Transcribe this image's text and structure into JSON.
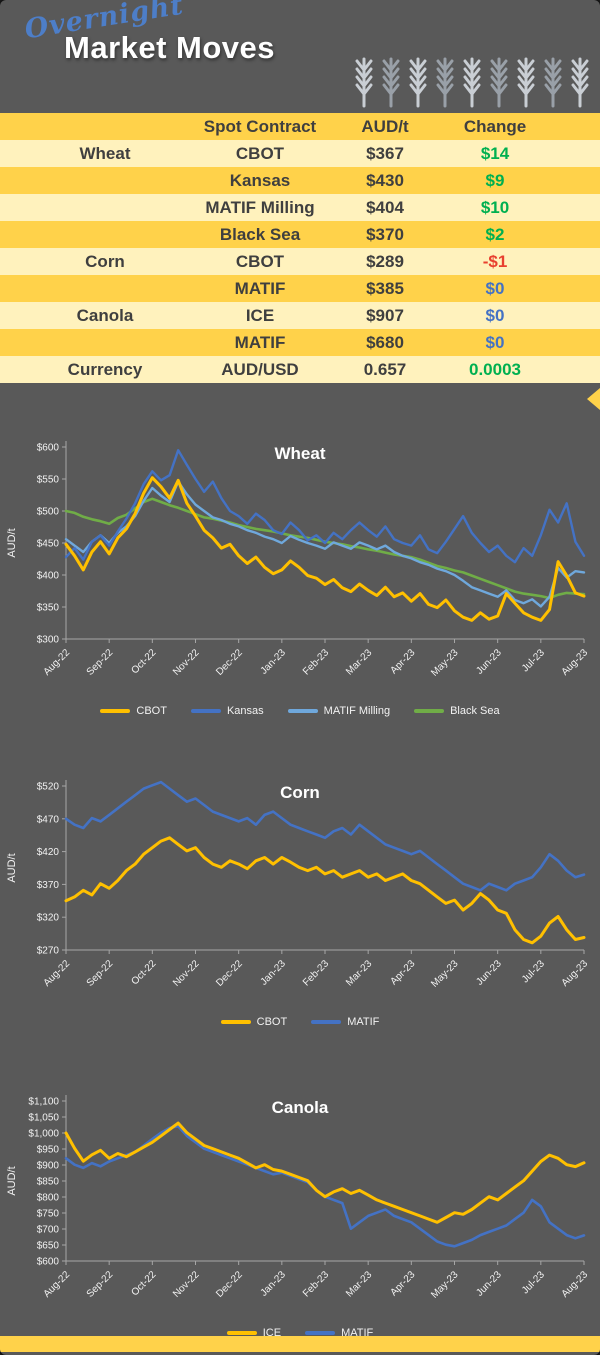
{
  "colors": {
    "background": "#595959",
    "gold": "#FFD24A",
    "pale_yellow": "#FFF2BD",
    "table_text": "#3F3F3F",
    "green": "#00B050",
    "red": "#E8402F",
    "blue": "#4472C4",
    "overnight_blue": "#4D7EC8",
    "series_yellow": "#FFC000",
    "series_blue": "#4472C4",
    "series_lightblue": "#6FA8DC",
    "series_green": "#70AD47"
  },
  "header": {
    "script_word": "Overnight",
    "title": "Market Moves",
    "wheat_icon_count": 9
  },
  "table": {
    "headers": [
      "",
      "Spot Contract",
      "AUD/t",
      "Change"
    ],
    "rows": [
      {
        "category": "Wheat",
        "contract": "CBOT",
        "price": "$367",
        "change": "$14",
        "change_color": "green"
      },
      {
        "category": "",
        "contract": "Kansas",
        "price": "$430",
        "change": "$9",
        "change_color": "green"
      },
      {
        "category": "",
        "contract": "MATIF Milling",
        "price": "$404",
        "change": "$10",
        "change_color": "green"
      },
      {
        "category": "",
        "contract": "Black Sea",
        "price": "$370",
        "change": "$2",
        "change_color": "green"
      },
      {
        "category": "Corn",
        "contract": "CBOT",
        "price": "$289",
        "change": "-$1",
        "change_color": "red"
      },
      {
        "category": "",
        "contract": "MATIF",
        "price": "$385",
        "change": "$0",
        "change_color": "blue"
      },
      {
        "category": "Canola",
        "contract": "ICE",
        "price": "$907",
        "change": "$0",
        "change_color": "blue"
      },
      {
        "category": "",
        "contract": "MATIF",
        "price": "$680",
        "change": "$0",
        "change_color": "blue"
      },
      {
        "category": "Currency",
        "contract": "AUD/USD",
        "price": "0.657",
        "change": "0.0003",
        "change_color": "green"
      }
    ]
  },
  "chart_data": [
    {
      "type": "line",
      "title": "Wheat",
      "xlabel": "",
      "ylabel": "AUD/t",
      "ylim": [
        300,
        600
      ],
      "ytick_values": [
        300,
        350,
        400,
        450,
        500,
        550,
        600
      ],
      "yticks": [
        "$300",
        "$350",
        "$400",
        "$450",
        "$500",
        "$550",
        "$600"
      ],
      "x_labels": [
        "Aug-22",
        "Sep-22",
        "Oct-22",
        "Nov-22",
        "Dec-22",
        "Jan-23",
        "Feb-23",
        "Mar-23",
        "Apr-23",
        "May-23",
        "Jun-23",
        "Jul-23",
        "Aug-23"
      ],
      "grid": false,
      "legend_position": "bottom",
      "series": [
        {
          "name": "CBOT",
          "color": "#FFC000",
          "width": 3,
          "values": [
            448,
            430,
            408,
            436,
            452,
            433,
            458,
            472,
            496,
            528,
            552,
            538,
            520,
            548,
            512,
            492,
            470,
            458,
            442,
            448,
            430,
            418,
            428,
            412,
            402,
            408,
            422,
            412,
            399,
            395,
            385,
            393,
            380,
            374,
            386,
            376,
            368,
            381,
            366,
            372,
            359,
            371,
            354,
            349,
            361,
            344,
            334,
            329,
            341,
            331,
            336,
            371,
            356,
            341,
            334,
            329,
            346,
            421,
            399,
            372,
            367
          ]
        },
        {
          "name": "Kansas",
          "color": "#4472C4",
          "width": 2.4,
          "values": [
            428,
            442,
            424,
            452,
            462,
            446,
            468,
            488,
            512,
            542,
            562,
            548,
            556,
            595,
            572,
            550,
            530,
            546,
            520,
            500,
            492,
            480,
            496,
            486,
            470,
            464,
            482,
            470,
            454,
            462,
            450,
            466,
            456,
            470,
            482,
            470,
            460,
            476,
            456,
            450,
            446,
            462,
            440,
            434,
            452,
            472,
            492,
            466,
            450,
            436,
            446,
            430,
            420,
            442,
            430,
            462,
            502,
            482,
            512,
            452,
            430
          ]
        },
        {
          "name": "MATIF Milling",
          "color": "#6FA8DC",
          "width": 2.4,
          "values": [
            456,
            446,
            436,
            452,
            462,
            450,
            466,
            476,
            492,
            516,
            536,
            524,
            514,
            546,
            526,
            510,
            500,
            490,
            486,
            480,
            476,
            470,
            466,
            460,
            456,
            450,
            461,
            455,
            450,
            446,
            441,
            451,
            446,
            441,
            451,
            446,
            440,
            446,
            436,
            430,
            426,
            420,
            416,
            410,
            406,
            400,
            391,
            381,
            376,
            371,
            366,
            376,
            361,
            356,
            362,
            351,
            366,
            411,
            396,
            406,
            404
          ]
        },
        {
          "name": "Black Sea",
          "color": "#70AD47",
          "width": 2.6,
          "values": [
            500,
            497,
            491,
            487,
            484,
            480,
            489,
            494,
            504,
            514,
            519,
            514,
            509,
            505,
            500,
            495,
            490,
            488,
            485,
            482,
            478,
            475,
            472,
            470,
            468,
            465,
            462,
            460,
            458,
            455,
            452,
            450,
            448,
            445,
            443,
            440,
            438,
            435,
            432,
            430,
            428,
            424,
            419,
            414,
            411,
            407,
            404,
            399,
            394,
            389,
            384,
            379,
            374,
            371,
            369,
            367,
            364,
            369,
            372,
            371,
            370
          ]
        }
      ]
    },
    {
      "type": "line",
      "title": "Corn",
      "xlabel": "",
      "ylabel": "AUD/t",
      "ylim": [
        270,
        520
      ],
      "ytick_values": [
        270,
        320,
        370,
        420,
        470,
        520
      ],
      "yticks": [
        "$270",
        "$320",
        "$370",
        "$420",
        "$470",
        "$520"
      ],
      "x_labels": [
        "Aug-22",
        "Sep-22",
        "Oct-22",
        "Nov-22",
        "Dec-22",
        "Jan-23",
        "Feb-23",
        "Mar-23",
        "Apr-23",
        "May-23",
        "Jun-23",
        "Jul-23",
        "Aug-23"
      ],
      "grid": false,
      "legend_position": "bottom",
      "series": [
        {
          "name": "CBOT",
          "color": "#FFC000",
          "width": 3,
          "values": [
            345,
            351,
            361,
            354,
            371,
            364,
            376,
            391,
            401,
            416,
            426,
            436,
            441,
            431,
            421,
            426,
            411,
            401,
            396,
            406,
            401,
            394,
            406,
            411,
            401,
            411,
            404,
            396,
            391,
            396,
            386,
            391,
            381,
            386,
            391,
            381,
            386,
            376,
            381,
            386,
            376,
            371,
            361,
            351,
            341,
            346,
            331,
            341,
            356,
            346,
            331,
            326,
            301,
            286,
            281,
            291,
            311,
            321,
            301,
            286,
            289
          ]
        },
        {
          "name": "MATIF",
          "color": "#4472C4",
          "width": 2.6,
          "values": [
            470,
            461,
            456,
            471,
            466,
            476,
            486,
            496,
            506,
            516,
            521,
            526,
            516,
            506,
            496,
            501,
            491,
            481,
            476,
            471,
            466,
            471,
            461,
            476,
            481,
            471,
            461,
            456,
            451,
            446,
            441,
            451,
            456,
            446,
            461,
            451,
            441,
            431,
            426,
            421,
            416,
            421,
            411,
            401,
            391,
            381,
            371,
            366,
            361,
            371,
            366,
            361,
            371,
            376,
            381,
            396,
            416,
            406,
            391,
            381,
            385
          ]
        }
      ]
    },
    {
      "type": "line",
      "title": "Canola",
      "xlabel": "",
      "ylabel": "AUD/t",
      "ylim": [
        600,
        1100
      ],
      "ytick_values": [
        600,
        650,
        700,
        750,
        800,
        850,
        900,
        950,
        1000,
        1050,
        1100
      ],
      "yticks": [
        "$600",
        "$650",
        "$700",
        "$750",
        "$800",
        "$850",
        "$900",
        "$950",
        "$1,000",
        "$1,050",
        "$1,100"
      ],
      "x_labels": [
        "Aug-22",
        "Sep-22",
        "Oct-22",
        "Nov-22",
        "Dec-22",
        "Jan-23",
        "Feb-23",
        "Mar-23",
        "Apr-23",
        "May-23",
        "Jun-23",
        "Jul-23",
        "Aug-23"
      ],
      "grid": false,
      "legend_position": "bottom",
      "series": [
        {
          "name": "ICE",
          "color": "#FFC000",
          "width": 3,
          "values": [
            1000,
            952,
            912,
            932,
            946,
            921,
            936,
            926,
            941,
            956,
            971,
            991,
            1011,
            1031,
            1001,
            981,
            961,
            951,
            941,
            931,
            921,
            906,
            891,
            901,
            886,
            881,
            871,
            861,
            851,
            821,
            801,
            816,
            826,
            811,
            821,
            806,
            791,
            781,
            771,
            761,
            751,
            741,
            731,
            721,
            736,
            751,
            746,
            761,
            781,
            801,
            791,
            811,
            831,
            851,
            881,
            911,
            931,
            921,
            901,
            895,
            907
          ]
        },
        {
          "name": "MATIF",
          "color": "#4472C4",
          "width": 2.6,
          "values": [
            921,
            901,
            891,
            906,
            896,
            911,
            921,
            931,
            941,
            961,
            981,
            1001,
            1016,
            1021,
            991,
            971,
            951,
            941,
            931,
            921,
            911,
            901,
            891,
            881,
            871,
            876,
            866,
            856,
            846,
            821,
            801,
            791,
            781,
            701,
            721,
            741,
            751,
            761,
            741,
            731,
            721,
            701,
            681,
            661,
            651,
            646,
            656,
            666,
            681,
            691,
            701,
            711,
            731,
            751,
            791,
            771,
            721,
            701,
            681,
            671,
            680
          ]
        }
      ]
    }
  ]
}
